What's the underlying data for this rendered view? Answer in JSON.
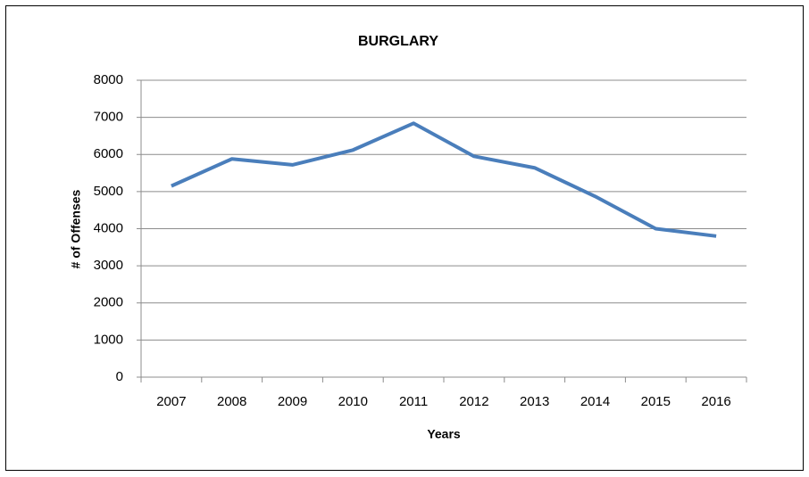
{
  "chart_data": {
    "type": "line",
    "title": "BURGLARY",
    "x_label": "Years",
    "y_label": "# of Offenses",
    "categories": [
      "2007",
      "2008",
      "2009",
      "2010",
      "2011",
      "2012",
      "2013",
      "2014",
      "2015",
      "2016"
    ],
    "series": [
      {
        "name": "Burglary",
        "color": "#4a7ebb",
        "values": [
          5150,
          5880,
          5720,
          6120,
          6840,
          5950,
          5640,
          4870,
          4000,
          3800
        ]
      }
    ],
    "ylim": [
      0,
      8000
    ],
    "yticks": [
      0,
      1000,
      2000,
      3000,
      4000,
      5000,
      6000,
      7000,
      8000
    ],
    "grid": true
  }
}
